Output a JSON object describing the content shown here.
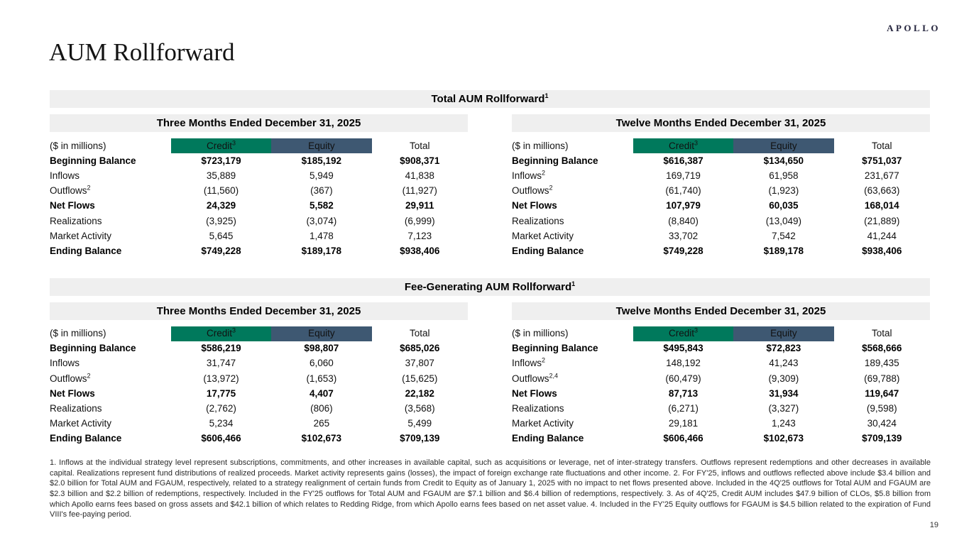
{
  "header": {
    "logo": "APOLLO",
    "title": "AUM Rollforward"
  },
  "page_number": "19",
  "colors": {
    "credit": "#00795C",
    "equity": "#3E5872",
    "bar_bg": "#EFEFEF"
  },
  "sections": [
    {
      "title": "Total AUM Rollforward",
      "title_sup": "1",
      "tables": [
        {
          "period": "Three Months Ended December 31, 2025",
          "unit_label": "($ in millions)",
          "columns": [
            {
              "label": "Credit",
              "sup": "3",
              "style": "credit"
            },
            {
              "label": "Equity",
              "sup": "",
              "style": "equity"
            },
            {
              "label": "Total",
              "sup": "",
              "style": "total"
            }
          ],
          "rows": [
            {
              "label": "Beginning Balance",
              "sup": "",
              "bold": true,
              "values": [
                "$723,179",
                "$185,192",
                "$908,371"
              ]
            },
            {
              "label": "Inflows",
              "sup": "",
              "bold": false,
              "values": [
                "35,889",
                "5,949",
                "41,838"
              ]
            },
            {
              "label": "Outflows",
              "sup": "2",
              "bold": false,
              "values": [
                "(11,560)",
                "(367)",
                "(11,927)"
              ]
            },
            {
              "label": "Net Flows",
              "sup": "",
              "bold": true,
              "values": [
                "24,329",
                "5,582",
                "29,911"
              ]
            },
            {
              "label": "Realizations",
              "sup": "",
              "bold": false,
              "values": [
                "(3,925)",
                "(3,074)",
                "(6,999)"
              ]
            },
            {
              "label": "Market Activity",
              "sup": "",
              "bold": false,
              "values": [
                "5,645",
                "1,478",
                "7,123"
              ]
            },
            {
              "label": "Ending Balance",
              "sup": "",
              "bold": true,
              "values": [
                "$749,228",
                "$189,178",
                "$938,406"
              ]
            }
          ]
        },
        {
          "period": "Twelve Months Ended December 31, 2025",
          "unit_label": "($ in millions)",
          "columns": [
            {
              "label": "Credit",
              "sup": "3",
              "style": "credit"
            },
            {
              "label": "Equity",
              "sup": "",
              "style": "equity"
            },
            {
              "label": "Total",
              "sup": "",
              "style": "total"
            }
          ],
          "rows": [
            {
              "label": "Beginning Balance",
              "sup": "",
              "bold": true,
              "values": [
                "$616,387",
                "$134,650",
                "$751,037"
              ]
            },
            {
              "label": "Inflows",
              "sup": "2",
              "bold": false,
              "values": [
                "169,719",
                "61,958",
                "231,677"
              ]
            },
            {
              "label": "Outflows",
              "sup": "2",
              "bold": false,
              "values": [
                "(61,740)",
                "(1,923)",
                "(63,663)"
              ]
            },
            {
              "label": "Net Flows",
              "sup": "",
              "bold": true,
              "values": [
                "107,979",
                "60,035",
                "168,014"
              ]
            },
            {
              "label": "Realizations",
              "sup": "",
              "bold": false,
              "values": [
                "(8,840)",
                "(13,049)",
                "(21,889)"
              ]
            },
            {
              "label": "Market Activity",
              "sup": "",
              "bold": false,
              "values": [
                "33,702",
                "7,542",
                "41,244"
              ]
            },
            {
              "label": "Ending Balance",
              "sup": "",
              "bold": true,
              "values": [
                "$749,228",
                "$189,178",
                "$938,406"
              ]
            }
          ]
        }
      ]
    },
    {
      "title": "Fee-Generating AUM Rollforward",
      "title_sup": "1",
      "tables": [
        {
          "period": "Three Months Ended December 31, 2025",
          "unit_label": "($ in millions)",
          "columns": [
            {
              "label": "Credit",
              "sup": "3",
              "style": "credit"
            },
            {
              "label": "Equity",
              "sup": "",
              "style": "equity"
            },
            {
              "label": "Total",
              "sup": "",
              "style": "total"
            }
          ],
          "rows": [
            {
              "label": "Beginning Balance",
              "sup": "",
              "bold": true,
              "values": [
                "$586,219",
                "$98,807",
                "$685,026"
              ]
            },
            {
              "label": "Inflows",
              "sup": "",
              "bold": false,
              "values": [
                "31,747",
                "6,060",
                "37,807"
              ]
            },
            {
              "label": "Outflows",
              "sup": "2",
              "bold": false,
              "values": [
                "(13,972)",
                "(1,653)",
                "(15,625)"
              ]
            },
            {
              "label": "Net Flows",
              "sup": "",
              "bold": true,
              "values": [
                "17,775",
                "4,407",
                "22,182"
              ]
            },
            {
              "label": "Realizations",
              "sup": "",
              "bold": false,
              "values": [
                "(2,762)",
                "(806)",
                "(3,568)"
              ]
            },
            {
              "label": "Market Activity",
              "sup": "",
              "bold": false,
              "values": [
                "5,234",
                "265",
                "5,499"
              ]
            },
            {
              "label": "Ending Balance",
              "sup": "",
              "bold": true,
              "values": [
                "$606,466",
                "$102,673",
                "$709,139"
              ]
            }
          ]
        },
        {
          "period": "Twelve Months Ended December 31, 2025",
          "unit_label": "($ in millions)",
          "columns": [
            {
              "label": "Credit",
              "sup": "3",
              "style": "credit"
            },
            {
              "label": "Equity",
              "sup": "",
              "style": "equity"
            },
            {
              "label": "Total",
              "sup": "",
              "style": "total"
            }
          ],
          "rows": [
            {
              "label": "Beginning Balance",
              "sup": "",
              "bold": true,
              "values": [
                "$495,843",
                "$72,823",
                "$568,666"
              ]
            },
            {
              "label": "Inflows",
              "sup": "2",
              "bold": false,
              "values": [
                "148,192",
                "41,243",
                "189,435"
              ]
            },
            {
              "label": "Outflows",
              "sup": "2,4",
              "bold": false,
              "values": [
                "(60,479)",
                "(9,309)",
                "(69,788)"
              ]
            },
            {
              "label": "Net Flows",
              "sup": "",
              "bold": true,
              "values": [
                "87,713",
                "31,934",
                "119,647"
              ]
            },
            {
              "label": "Realizations",
              "sup": "",
              "bold": false,
              "values": [
                "(6,271)",
                "(3,327)",
                "(9,598)"
              ]
            },
            {
              "label": "Market Activity",
              "sup": "",
              "bold": false,
              "values": [
                "29,181",
                "1,243",
                "30,424"
              ]
            },
            {
              "label": "Ending Balance",
              "sup": "",
              "bold": true,
              "values": [
                "$606,466",
                "$102,673",
                "$709,139"
              ]
            }
          ]
        }
      ]
    }
  ],
  "footnote": "1. Inflows at the individual strategy level represent subscriptions, commitments, and other increases in available capital, such as acquisitions or leverage, net of inter-strategy transfers. Outflows represent redemptions and other decreases in available capital. Realizations represent fund distributions of realized proceeds. Market activity represents gains (losses), the impact of foreign exchange rate fluctuations and other income. 2. For FY'25, inflows and outflows reflected above include $3.4 billion and $2.0 billion for Total AUM and FGAUM, respectively, related to a strategy realignment of certain funds from Credit to Equity as of January 1, 2025 with no impact to net flows presented above. Included in the 4Q'25 outflows for Total AUM and FGAUM are $2.3 billion and $2.2 billion of redemptions, respectively. Included in the FY'25 outflows for Total AUM and FGAUM are $7.1 billion and $6.4 billion of redemptions, respectively. 3. As of 4Q'25, Credit AUM includes $47.9 billion of CLOs, $5.8 billion from which Apollo earns fees based on gross assets and $42.1 billion of which relates to Redding Ridge, from which Apollo earns fees based on net asset value. 4. Included in the FY'25 Equity outflows for FGAUM is $4.5 billion related to the expiration of Fund VIII's fee-paying period."
}
